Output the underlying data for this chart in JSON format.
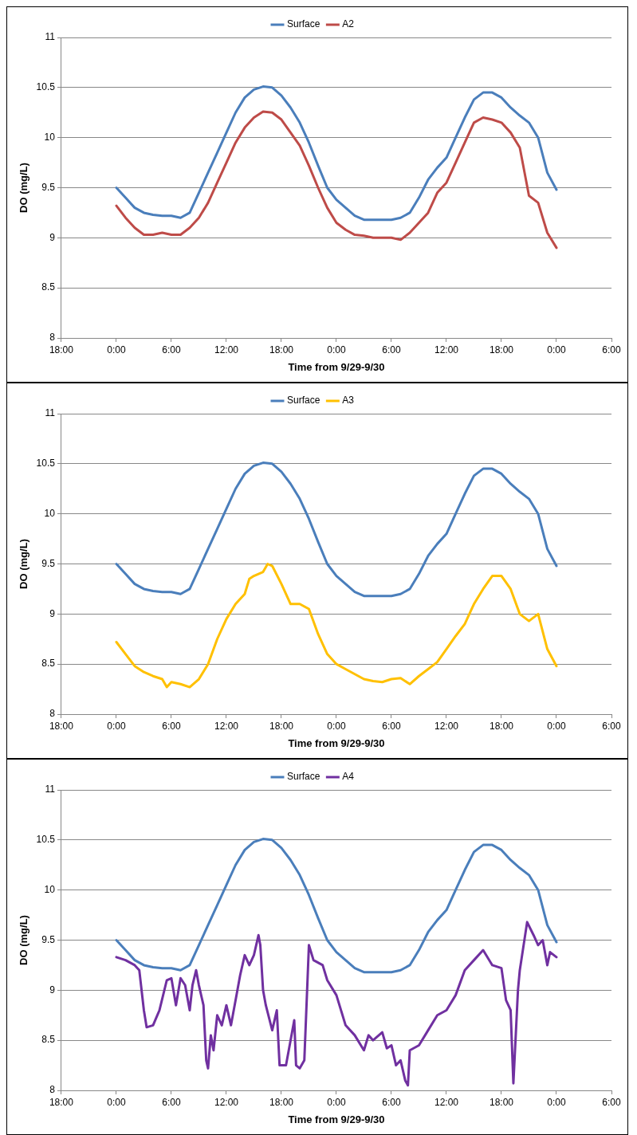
{
  "chart_data": [
    {
      "type": "line",
      "xlabel": "Time from 9/29-9/30",
      "ylabel": "DO (mg/L)",
      "xlim": [
        "--09-28T18:00",
        "--10-01T06:00"
      ],
      "xticks": [
        {
          "value": "--09-28T18:00",
          "label": "18:00"
        },
        {
          "value": "--09-29T00:00",
          "label": "0:00"
        },
        {
          "value": "--09-29T06:00",
          "label": "6:00"
        },
        {
          "value": "--09-29T12:00",
          "label": "12:00"
        },
        {
          "value": "--09-29T18:00",
          "label": "18:00"
        },
        {
          "value": "--09-30T00:00",
          "label": "0:00"
        },
        {
          "value": "--09-30T06:00",
          "label": "6:00"
        },
        {
          "value": "--09-30T12:00",
          "label": "12:00"
        },
        {
          "value": "--09-30T18:00",
          "label": "18:00"
        },
        {
          "value": "--10-01T00:00",
          "label": "0:00"
        },
        {
          "value": "--10-01T06:00",
          "label": "6:00"
        }
      ],
      "ylim": [
        8,
        11
      ],
      "yticks": [
        8,
        8.5,
        9,
        9.5,
        10,
        10.5,
        11
      ],
      "grid": "y",
      "legend": "top",
      "marker": "none",
      "line_style": "solid",
      "x": [
        "--09-29T00:00",
        "--09-29T01:00",
        "--09-29T02:00",
        "--09-29T03:00",
        "--09-29T04:00",
        "--09-29T05:00",
        "--09-29T06:00",
        "--09-29T07:00",
        "--09-29T08:00",
        "--09-29T09:00",
        "--09-29T10:00",
        "--09-29T11:00",
        "--09-29T12:00",
        "--09-29T13:00",
        "--09-29T14:00",
        "--09-29T15:00",
        "--09-29T16:00",
        "--09-29T17:00",
        "--09-29T18:00",
        "--09-29T19:00",
        "--09-29T20:00",
        "--09-29T21:00",
        "--09-29T22:00",
        "--09-29T23:00",
        "--09-30T00:00",
        "--09-30T01:00",
        "--09-30T02:00",
        "--09-30T03:00",
        "--09-30T04:00",
        "--09-30T05:00",
        "--09-30T06:00",
        "--09-30T07:00",
        "--09-30T08:00",
        "--09-30T09:00",
        "--09-30T10:00",
        "--09-30T11:00",
        "--09-30T12:00",
        "--09-30T13:00",
        "--09-30T14:00",
        "--09-30T15:00",
        "--09-30T16:00",
        "--09-30T17:00",
        "--09-30T18:00",
        "--09-30T19:00",
        "--09-30T20:00",
        "--09-30T21:00",
        "--09-30T22:00",
        "--09-30T23:00",
        "--10-01T00:00"
      ],
      "series": [
        {
          "name": "Surface",
          "color": "#4a7ebb",
          "values": [
            9.5,
            9.4,
            9.3,
            9.25,
            9.23,
            9.22,
            9.22,
            9.2,
            9.25,
            9.45,
            9.65,
            9.85,
            10.05,
            10.25,
            10.4,
            10.48,
            10.51,
            10.5,
            10.42,
            10.3,
            10.15,
            9.95,
            9.72,
            9.5,
            9.38,
            9.3,
            9.22,
            9.18,
            9.18,
            9.18,
            9.18,
            9.2,
            9.25,
            9.4,
            9.58,
            9.7,
            9.8,
            10,
            10.2,
            10.38,
            10.45,
            10.45,
            10.4,
            10.3,
            10.22,
            10.15,
            10,
            9.65,
            9.48
          ]
        },
        {
          "name": "A2",
          "color": "#be4b48",
          "values": [
            9.32,
            9.2,
            9.1,
            9.03,
            9.03,
            9.05,
            9.03,
            9.03,
            9.1,
            9.2,
            9.35,
            9.55,
            9.75,
            9.95,
            10.1,
            10.2,
            10.26,
            10.25,
            10.18,
            10.05,
            9.92,
            9.72,
            9.5,
            9.3,
            9.15,
            9.08,
            9.03,
            9.02,
            9,
            9,
            9,
            8.98,
            9.05,
            9.15,
            9.25,
            9.45,
            9.55,
            9.75,
            9.95,
            10.15,
            10.2,
            10.18,
            10.15,
            10.05,
            9.9,
            9.42,
            9.35,
            9.05,
            8.9
          ]
        }
      ]
    },
    {
      "type": "line",
      "xlabel": "Time from 9/29-9/30",
      "ylabel": "DO (mg/L)",
      "xlim": [
        "--09-28T18:00",
        "--10-01T06:00"
      ],
      "xticks": [
        {
          "value": "--09-28T18:00",
          "label": "18:00"
        },
        {
          "value": "--09-29T00:00",
          "label": "0:00"
        },
        {
          "value": "--09-29T06:00",
          "label": "6:00"
        },
        {
          "value": "--09-29T12:00",
          "label": "12:00"
        },
        {
          "value": "--09-29T18:00",
          "label": "18:00"
        },
        {
          "value": "--09-30T00:00",
          "label": "0:00"
        },
        {
          "value": "--09-30T06:00",
          "label": "6:00"
        },
        {
          "value": "--09-30T12:00",
          "label": "12:00"
        },
        {
          "value": "--09-30T18:00",
          "label": "18:00"
        },
        {
          "value": "--10-01T00:00",
          "label": "0:00"
        },
        {
          "value": "--10-01T06:00",
          "label": "6:00"
        }
      ],
      "ylim": [
        8,
        11
      ],
      "yticks": [
        8,
        8.5,
        9,
        9.5,
        10,
        10.5,
        11
      ],
      "grid": "y",
      "legend": "top",
      "marker": "none",
      "line_style": "solid",
      "x": [
        "--09-29T00:00",
        "--09-29T01:00",
        "--09-29T02:00",
        "--09-29T03:00",
        "--09-29T04:00",
        "--09-29T05:00",
        "--09-29T06:00",
        "--09-29T07:00",
        "--09-29T08:00",
        "--09-29T09:00",
        "--09-29T10:00",
        "--09-29T11:00",
        "--09-29T12:00",
        "--09-29T13:00",
        "--09-29T14:00",
        "--09-29T15:00",
        "--09-29T16:00",
        "--09-29T17:00",
        "--09-29T18:00",
        "--09-29T19:00",
        "--09-29T20:00",
        "--09-29T21:00",
        "--09-29T22:00",
        "--09-29T23:00",
        "--09-30T00:00",
        "--09-30T01:00",
        "--09-30T02:00",
        "--09-30T03:00",
        "--09-30T04:00",
        "--09-30T05:00",
        "--09-30T06:00",
        "--09-30T07:00",
        "--09-30T08:00",
        "--09-30T09:00",
        "--09-30T10:00",
        "--09-30T11:00",
        "--09-30T12:00",
        "--09-30T13:00",
        "--09-30T14:00",
        "--09-30T15:00",
        "--09-30T16:00",
        "--09-30T17:00",
        "--09-30T18:00",
        "--09-30T19:00",
        "--09-30T20:00",
        "--09-30T21:00",
        "--09-30T22:00",
        "--09-30T23:00",
        "--10-01T00:00"
      ],
      "series": [
        {
          "name": "Surface",
          "color": "#4a7ebb",
          "values": [
            9.5,
            9.4,
            9.3,
            9.25,
            9.23,
            9.22,
            9.22,
            9.2,
            9.25,
            9.45,
            9.65,
            9.85,
            10.05,
            10.25,
            10.4,
            10.48,
            10.51,
            10.5,
            10.42,
            10.3,
            10.15,
            9.95,
            9.72,
            9.5,
            9.38,
            9.3,
            9.22,
            9.18,
            9.18,
            9.18,
            9.18,
            9.2,
            9.25,
            9.4,
            9.58,
            9.7,
            9.8,
            10,
            10.2,
            10.38,
            10.45,
            10.45,
            10.4,
            10.3,
            10.22,
            10.15,
            10,
            9.65,
            9.48
          ]
        },
        {
          "name": "A3",
          "color": "#ffc000",
          "x": [
            "--09-29T00:00",
            "--09-29T01:00",
            "--09-29T02:00",
            "--09-29T03:00",
            "--09-29T04:00",
            "--09-29T05:00",
            "--09-29T05:30",
            "--09-29T06:00",
            "--09-29T07:00",
            "--09-29T08:00",
            "--09-29T09:00",
            "--09-29T10:00",
            "--09-29T11:00",
            "--09-29T12:00",
            "--09-29T13:00",
            "--09-29T14:00",
            "--09-29T14:30",
            "--09-29T15:00",
            "--09-29T16:00",
            "--09-29T16:30",
            "--09-29T17:00",
            "--09-29T18:00",
            "--09-29T19:00",
            "--09-29T20:00",
            "--09-29T21:00",
            "--09-29T22:00",
            "--09-29T23:00",
            "--09-30T00:00",
            "--09-30T01:00",
            "--09-30T02:00",
            "--09-30T03:00",
            "--09-30T04:00",
            "--09-30T05:00",
            "--09-30T06:00",
            "--09-30T07:00",
            "--09-30T08:00",
            "--09-30T09:00",
            "--09-30T10:00",
            "--09-30T11:00",
            "--09-30T12:00",
            "--09-30T13:00",
            "--09-30T14:00",
            "--09-30T15:00",
            "--09-30T16:00",
            "--09-30T17:00",
            "--09-30T18:00",
            "--09-30T19:00",
            "--09-30T20:00",
            "--09-30T21:00",
            "--09-30T22:00",
            "--09-30T23:00",
            "--10-01T00:00"
          ],
          "values": [
            8.72,
            8.6,
            8.48,
            8.42,
            8.38,
            8.35,
            8.27,
            8.32,
            8.3,
            8.27,
            8.35,
            8.5,
            8.75,
            8.95,
            9.1,
            9.2,
            9.35,
            9.38,
            9.42,
            9.5,
            9.48,
            9.3,
            9.1,
            9.1,
            9.05,
            8.8,
            8.6,
            8.5,
            8.45,
            8.4,
            8.35,
            8.33,
            8.32,
            8.35,
            8.36,
            8.3,
            8.38,
            8.45,
            8.52,
            8.65,
            8.78,
            8.9,
            9.1,
            9.25,
            9.38,
            9.38,
            9.25,
            9,
            8.93,
            9,
            8.65,
            8.48
          ]
        }
      ]
    },
    {
      "type": "line",
      "xlabel": "Time from 9/29-9/30",
      "ylabel": "DO (mg/L)",
      "xlim": [
        "--09-28T18:00",
        "--10-01T06:00"
      ],
      "xticks": [
        {
          "value": "--09-28T18:00",
          "label": "18:00"
        },
        {
          "value": "--09-29T00:00",
          "label": "0:00"
        },
        {
          "value": "--09-29T06:00",
          "label": "6:00"
        },
        {
          "value": "--09-29T12:00",
          "label": "12:00"
        },
        {
          "value": "--09-29T18:00",
          "label": "18:00"
        },
        {
          "value": "--09-30T00:00",
          "label": "0:00"
        },
        {
          "value": "--09-30T06:00",
          "label": "6:00"
        },
        {
          "value": "--09-30T12:00",
          "label": "12:00"
        },
        {
          "value": "--09-30T18:00",
          "label": "18:00"
        },
        {
          "value": "--10-01T00:00",
          "label": "0:00"
        },
        {
          "value": "--10-01T06:00",
          "label": "6:00"
        }
      ],
      "ylim": [
        8,
        11
      ],
      "yticks": [
        8,
        8.5,
        9,
        9.5,
        10,
        10.5,
        11
      ],
      "grid": "y",
      "legend": "top",
      "marker": "none",
      "line_style": "solid",
      "x": [
        "--09-29T00:00",
        "--09-29T01:00",
        "--09-29T02:00",
        "--09-29T03:00",
        "--09-29T04:00",
        "--09-29T05:00",
        "--09-29T06:00",
        "--09-29T07:00",
        "--09-29T08:00",
        "--09-29T09:00",
        "--09-29T10:00",
        "--09-29T11:00",
        "--09-29T12:00",
        "--09-29T13:00",
        "--09-29T14:00",
        "--09-29T15:00",
        "--09-29T16:00",
        "--09-29T17:00",
        "--09-29T18:00",
        "--09-29T19:00",
        "--09-29T20:00",
        "--09-29T21:00",
        "--09-29T22:00",
        "--09-29T23:00",
        "--09-30T00:00",
        "--09-30T01:00",
        "--09-30T02:00",
        "--09-30T03:00",
        "--09-30T04:00",
        "--09-30T05:00",
        "--09-30T06:00",
        "--09-30T07:00",
        "--09-30T08:00",
        "--09-30T09:00",
        "--09-30T10:00",
        "--09-30T11:00",
        "--09-30T12:00",
        "--09-30T13:00",
        "--09-30T14:00",
        "--09-30T15:00",
        "--09-30T16:00",
        "--09-30T17:00",
        "--09-30T18:00",
        "--09-30T19:00",
        "--09-30T20:00",
        "--09-30T21:00",
        "--09-30T22:00",
        "--09-30T23:00",
        "--10-01T00:00"
      ],
      "series": [
        {
          "name": "Surface",
          "color": "#4a7ebb",
          "values": [
            9.5,
            9.4,
            9.3,
            9.25,
            9.23,
            9.22,
            9.22,
            9.2,
            9.25,
            9.45,
            9.65,
            9.85,
            10.05,
            10.25,
            10.4,
            10.48,
            10.51,
            10.5,
            10.42,
            10.3,
            10.15,
            9.95,
            9.72,
            9.5,
            9.38,
            9.3,
            9.22,
            9.18,
            9.18,
            9.18,
            9.18,
            9.2,
            9.25,
            9.4,
            9.58,
            9.7,
            9.8,
            10,
            10.2,
            10.38,
            10.45,
            10.45,
            10.4,
            10.3,
            10.22,
            10.15,
            10,
            9.65,
            9.48
          ]
        },
        {
          "name": "A4",
          "color": "#7030a0",
          "x": [
            "--09-29T00:00",
            "--09-29T01:00",
            "--09-29T02:00",
            "--09-29T02:30",
            "--09-29T03:00",
            "--09-29T03:18",
            "--09-29T04:00",
            "--09-29T04:42",
            "--09-29T05:30",
            "--09-29T06:00",
            "--09-29T06:30",
            "--09-29T07:00",
            "--09-29T07:30",
            "--09-29T08:00",
            "--09-29T08:18",
            "--09-29T08:42",
            "--09-29T09:00",
            "--09-29T09:30",
            "--09-29T09:48",
            "--09-29T10:00",
            "--09-29T10:18",
            "--09-29T10:36",
            "--09-29T11:00",
            "--09-29T11:30",
            "--09-29T12:00",
            "--09-29T12:30",
            "--09-29T13:00",
            "--09-29T13:30",
            "--09-29T14:00",
            "--09-29T14:30",
            "--09-29T15:00",
            "--09-29T15:30",
            "--09-29T15:42",
            "--09-29T16:00",
            "--09-29T16:18",
            "--09-29T17:00",
            "--09-29T17:30",
            "--09-29T17:48",
            "--09-29T18:30",
            "--09-29T19:00",
            "--09-29T19:24",
            "--09-29T19:36",
            "--09-29T20:00",
            "--09-29T20:30",
            "--09-29T21:00",
            "--09-29T21:30",
            "--09-29T22:30",
            "--09-29T23:00",
            "--09-30T00:00",
            "--09-30T01:00",
            "--09-30T02:00",
            "--09-30T03:00",
            "--09-30T03:30",
            "--09-30T04:00",
            "--09-30T05:00",
            "--09-30T05:30",
            "--09-30T06:00",
            "--09-30T06:30",
            "--09-30T07:00",
            "--09-30T07:30",
            "--09-30T07:48",
            "--09-30T08:00",
            "--09-30T09:00",
            "--09-30T10:00",
            "--09-30T11:00",
            "--09-30T12:00",
            "--09-30T13:00",
            "--09-30T14:00",
            "--09-30T15:00",
            "--09-30T16:00",
            "--09-30T17:00",
            "--09-30T18:00",
            "--09-30T18:30",
            "--09-30T19:00",
            "--09-30T19:18",
            "--09-30T19:48",
            "--09-30T20:00",
            "--09-30T20:48",
            "--09-30T21:30",
            "--09-30T22:00",
            "--09-30T22:30",
            "--09-30T23:00",
            "--09-30T23:18",
            "--10-01T00:00"
          ],
          "values": [
            9.33,
            9.3,
            9.25,
            9.2,
            8.8,
            8.63,
            8.65,
            8.8,
            9.1,
            9.12,
            8.85,
            9.12,
            9.05,
            8.8,
            9.05,
            9.2,
            9.05,
            8.85,
            8.3,
            8.22,
            8.55,
            8.4,
            8.75,
            8.65,
            8.85,
            8.65,
            8.9,
            9.15,
            9.35,
            9.25,
            9.35,
            9.55,
            9.45,
            9,
            8.85,
            8.6,
            8.8,
            8.25,
            8.25,
            8.5,
            8.7,
            8.25,
            8.22,
            8.3,
            9.45,
            9.3,
            9.25,
            9.1,
            8.95,
            8.65,
            8.55,
            8.4,
            8.55,
            8.5,
            8.58,
            8.42,
            8.45,
            8.25,
            8.3,
            8.1,
            8.05,
            8.4,
            8.45,
            8.6,
            8.75,
            8.8,
            8.95,
            9.2,
            9.3,
            9.4,
            9.25,
            9.22,
            8.9,
            8.8,
            8.07,
            9,
            9.2,
            9.68,
            9.55,
            9.45,
            9.5,
            9.25,
            9.38,
            9.33
          ]
        }
      ]
    }
  ]
}
